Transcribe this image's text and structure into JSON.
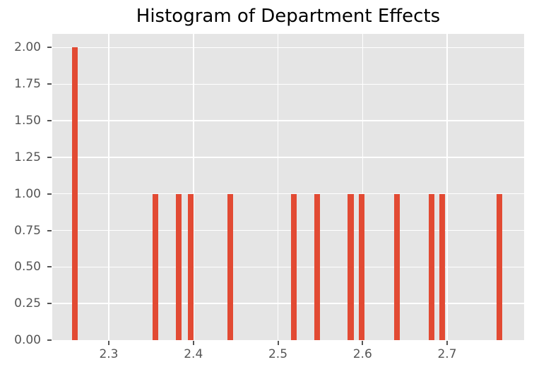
{
  "chart_data": {
    "type": "bar",
    "subtype": "histogram",
    "title": "Histogram of Department Effects",
    "xlabel": "",
    "ylabel": "",
    "grid": true,
    "legend_position": "none",
    "plot_bg_color": "#E5E5E5",
    "figure_bg_color": "#ffffff",
    "bar_color": "#E24A33",
    "grid_color": "#ffffff",
    "tick_color": "#555555",
    "title_color": "#000000",
    "xlim": [
      2.2332,
      2.791
    ],
    "ylim": [
      0,
      2.094
    ],
    "bin_width": 0.0067,
    "xticks": [
      2.3,
      2.4,
      2.5,
      2.6,
      2.7
    ],
    "xtick_labels": [
      "2.3",
      "2.4",
      "2.5",
      "2.6",
      "2.7"
    ],
    "yticks": [
      0.0,
      0.25,
      0.5,
      0.75,
      1.0,
      1.25,
      1.5,
      1.75,
      2.0
    ],
    "ytick_labels": [
      "0.00",
      "0.25",
      "0.50",
      "0.75",
      "1.00",
      "1.25",
      "1.50",
      "1.75",
      "2.00"
    ],
    "bars": [
      {
        "x": 2.26,
        "count": 2
      },
      {
        "x": 2.355,
        "count": 1
      },
      {
        "x": 2.383,
        "count": 1
      },
      {
        "x": 2.397,
        "count": 1
      },
      {
        "x": 2.444,
        "count": 1
      },
      {
        "x": 2.519,
        "count": 1
      },
      {
        "x": 2.546,
        "count": 1
      },
      {
        "x": 2.586,
        "count": 1
      },
      {
        "x": 2.599,
        "count": 1
      },
      {
        "x": 2.641,
        "count": 1
      },
      {
        "x": 2.682,
        "count": 1
      },
      {
        "x": 2.694,
        "count": 1
      },
      {
        "x": 2.762,
        "count": 1
      }
    ]
  }
}
